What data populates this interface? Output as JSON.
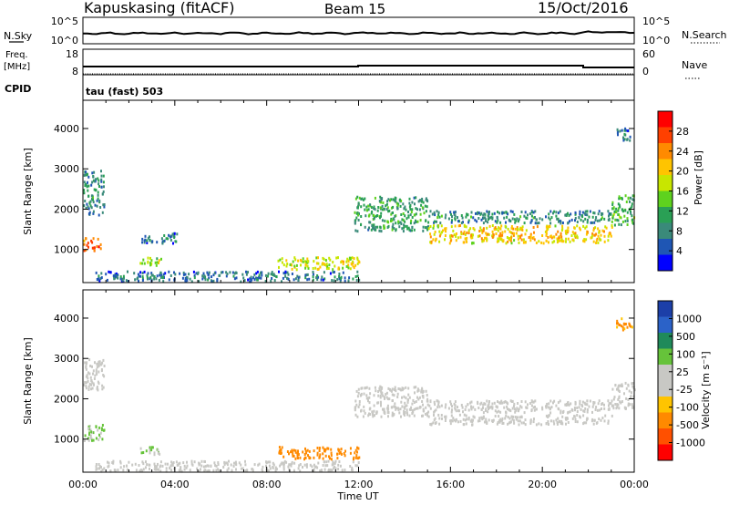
{
  "header": {
    "station": "Kapuskasing (fitACF)",
    "beam": "Beam 15",
    "date": "15/Oct/2016"
  },
  "noise_panel": {
    "left_label": "N.Sky",
    "left_ticks": [
      "10^5",
      "10^0"
    ],
    "right_label": "N.Search",
    "right_ticks": [
      "10^5",
      "10^0"
    ]
  },
  "freq_panel": {
    "left_label_line1": "Freq.",
    "left_label_line2": "[MHz]",
    "left_ticks": [
      "18",
      "8"
    ],
    "right_label": "Nave",
    "right_ticks": [
      "60",
      "0"
    ],
    "cpid_label": "CPID",
    "cpid_value": "tau (fast) 503"
  },
  "chart_data": [
    {
      "type": "heatmap",
      "name": "power",
      "ylabel": "Slant Range [km]",
      "xlabel": "Time UT",
      "x_range_hours": [
        0,
        24
      ],
      "ylim": [
        180,
        4700
      ],
      "x_ticks": [
        "00:00",
        "04:00",
        "08:00",
        "12:00",
        "16:00",
        "20:00",
        "00:00"
      ],
      "y_ticks": [
        1000,
        2000,
        3000,
        4000
      ],
      "colorbar": {
        "label": "Power [dB]",
        "ticks": [
          "28",
          "24",
          "20",
          "16",
          "12",
          "8",
          "4"
        ],
        "colors": [
          "#ff0000",
          "#ff4000",
          "#ff8a00",
          "#ffc400",
          "#c8e600",
          "#5ed21e",
          "#2aa055",
          "#3a8a7a",
          "#1f56b4",
          "#0000ff"
        ]
      },
      "regions": [
        {
          "t0": 0.0,
          "t1": 0.9,
          "r0": 1850,
          "r1": 2950,
          "level": 8
        },
        {
          "t0": 0.0,
          "t1": 0.8,
          "r0": 950,
          "r1": 1300,
          "level": 26
        },
        {
          "t0": 2.4,
          "t1": 3.4,
          "r0": 600,
          "r1": 800,
          "level": 16
        },
        {
          "t0": 2.5,
          "t1": 4.1,
          "r0": 1150,
          "r1": 1400,
          "level": 6
        },
        {
          "t0": 0.5,
          "t1": 12.0,
          "r0": 200,
          "r1": 450,
          "level": 6
        },
        {
          "t0": 8.4,
          "t1": 12.0,
          "r0": 500,
          "r1": 800,
          "level": 18
        },
        {
          "t0": 11.8,
          "t1": 15.0,
          "r0": 1450,
          "r1": 2300,
          "level": 10
        },
        {
          "t0": 15.0,
          "t1": 23.0,
          "r0": 1150,
          "r1": 1600,
          "level": 20
        },
        {
          "t0": 15.0,
          "t1": 23.0,
          "r0": 1650,
          "r1": 1950,
          "level": 8
        },
        {
          "t0": 23.0,
          "t1": 24.0,
          "r0": 1600,
          "r1": 2350,
          "level": 12
        },
        {
          "t0": 23.2,
          "t1": 23.9,
          "r0": 3700,
          "r1": 4000,
          "level": 6
        }
      ]
    },
    {
      "type": "heatmap",
      "name": "velocity",
      "ylabel": "Slant Range [km]",
      "xlabel": "Time UT",
      "x_range_hours": [
        0,
        24
      ],
      "ylim": [
        180,
        4700
      ],
      "x_ticks": [
        "00:00",
        "04:00",
        "08:00",
        "12:00",
        "16:00",
        "20:00",
        "00:00"
      ],
      "y_ticks": [
        1000,
        2000,
        3000,
        4000
      ],
      "colorbar": {
        "label": "Velocity [m s⁻¹]",
        "ticks": [
          "1000",
          "500",
          "100",
          "25",
          "-25",
          "-100",
          "-500",
          "-1000"
        ],
        "colors": [
          "#1c3fa8",
          "#2b62c8",
          "#1f8a5a",
          "#66c33a",
          "#c8c8c4",
          "#c8c8c4",
          "#ffc400",
          "#ff8a00",
          "#ff5000",
          "#ff0000"
        ]
      },
      "regions": [
        {
          "t0": 0.0,
          "t1": 0.9,
          "r0": 2200,
          "r1": 3000,
          "velocity": 0
        },
        {
          "t0": 0.0,
          "t1": 0.9,
          "r0": 950,
          "r1": 1350,
          "velocity": 120
        },
        {
          "t0": 2.4,
          "t1": 3.4,
          "r0": 600,
          "r1": 800,
          "velocity": 120
        },
        {
          "t0": 0.5,
          "t1": 12.0,
          "r0": 200,
          "r1": 450,
          "velocity": 0
        },
        {
          "t0": 8.4,
          "t1": 12.0,
          "r0": 500,
          "r1": 800,
          "velocity": -200
        },
        {
          "t0": 11.8,
          "t1": 15.0,
          "r0": 1550,
          "r1": 2300,
          "velocity": 0
        },
        {
          "t0": 15.0,
          "t1": 23.0,
          "r0": 1350,
          "r1": 1600,
          "velocity": 0
        },
        {
          "t0": 15.0,
          "t1": 23.0,
          "r0": 1650,
          "r1": 1950,
          "velocity": 0
        },
        {
          "t0": 23.0,
          "t1": 24.0,
          "r0": 1750,
          "r1": 2400,
          "velocity": 0
        },
        {
          "t0": 23.2,
          "t1": 23.9,
          "r0": 3700,
          "r1": 4000,
          "velocity": -150
        }
      ]
    }
  ]
}
